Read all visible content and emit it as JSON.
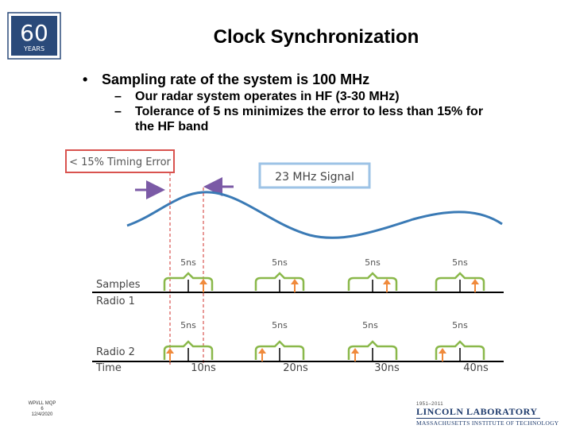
{
  "slide": {
    "title": "Clock Synchronization",
    "bullet": "Sampling rate of the system is 100 MHz",
    "sub_bullets": [
      "Our radar system operates in HF (3-30 MHz)",
      "Tolerance of 5 ns minimizes the error to less than 15% for",
      "the HF band"
    ]
  },
  "logo": {
    "number": "60",
    "word": "YEARS"
  },
  "figure": {
    "timing_error_label": "< 15% Timing Error",
    "signal_label": "23 MHz Signal",
    "row_labels": [
      "Samples",
      "Radio 1",
      "Radio 2",
      "Time"
    ],
    "interval_label": "5ns",
    "time_ticks": [
      "10ns",
      "20ns",
      "30ns",
      "40ns"
    ],
    "colors": {
      "signal": "#3a7ab5",
      "bracket": "#8ab84a",
      "arrow": "#f08a3c",
      "error_box": "#d9534f",
      "signal_box": "#9dc3e6",
      "move_arrow": "#7b5aa6"
    }
  },
  "footer": {
    "left": [
      "WPI/LL MQP",
      "6",
      "12/4/2020"
    ],
    "lab_years": "1951–2011",
    "lab_name": "LINCOLN LABORATORY",
    "lab_institute": "MASSACHUSETTS INSTITUTE OF TECHNOLOGY"
  }
}
